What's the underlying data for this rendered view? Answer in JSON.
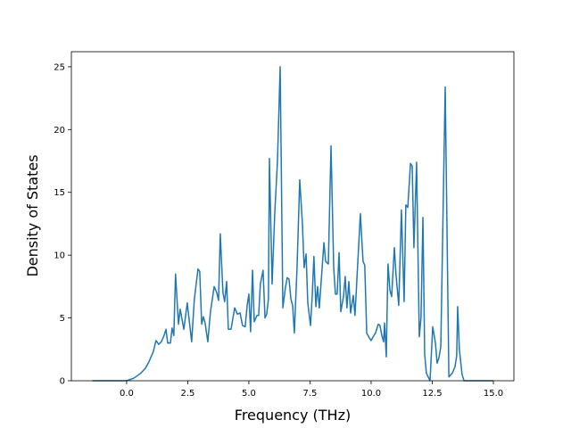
{
  "chart_data": {
    "type": "line",
    "xlabel": "Frequency (THz)",
    "ylabel": "Density of States",
    "x": [
      -1.4,
      0,
      0.29,
      0.58,
      0.77,
      0.91,
      1.02,
      1.09,
      1.2,
      1.31,
      1.42,
      1.53,
      1.61,
      1.68,
      1.79,
      1.86,
      1.93,
      2.0,
      2.12,
      2.19,
      2.34,
      2.48,
      2.59,
      2.66,
      2.77,
      2.92,
      2.99,
      3.07,
      3.14,
      3.21,
      3.32,
      3.43,
      3.58,
      3.69,
      3.76,
      3.83,
      3.94,
      4.01,
      4.09,
      4.16,
      4.27,
      4.42,
      4.53,
      4.64,
      4.74,
      4.85,
      4.93,
      5.0,
      5.07,
      5.15,
      5.22,
      5.33,
      5.4,
      5.47,
      5.58,
      5.66,
      5.73,
      5.8,
      5.84,
      5.95,
      6.06,
      6.17,
      6.28,
      6.39,
      6.5,
      6.57,
      6.64,
      6.72,
      6.79,
      6.86,
      6.97,
      7.08,
      7.19,
      7.26,
      7.34,
      7.41,
      7.52,
      7.59,
      7.66,
      7.74,
      7.81,
      7.88,
      8.07,
      8.14,
      8.25,
      8.36,
      8.47,
      8.54,
      8.61,
      8.69,
      8.76,
      8.87,
      8.94,
      9.01,
      9.09,
      9.16,
      9.27,
      9.34,
      9.56,
      9.67,
      9.74,
      9.82,
      9.93,
      10.0,
      10.11,
      10.18,
      10.29,
      10.36,
      10.44,
      10.51,
      10.55,
      10.62,
      10.69,
      10.77,
      10.84,
      10.95,
      11.02,
      11.13,
      11.24,
      11.35,
      11.42,
      11.5,
      11.61,
      11.68,
      11.75,
      11.86,
      11.97,
      12.04,
      12.12,
      12.19,
      12.26,
      12.41,
      12.52,
      12.63,
      12.7,
      12.77,
      12.85,
      13.03,
      13.18,
      13.32,
      13.43,
      13.5,
      13.54,
      13.61,
      13.72,
      13.8,
      15.0
    ],
    "series": [
      {
        "color": "#1f77b4",
        "values": [
          0,
          0,
          0.2,
          0.6,
          1.0,
          1.5,
          2.0,
          2.3,
          3.2,
          2.9,
          3.1,
          3.6,
          4.1,
          3.0,
          3.0,
          4.2,
          3.6,
          8.5,
          4.5,
          5.7,
          4.1,
          6.2,
          4.3,
          3.1,
          6.5,
          8.9,
          8.7,
          4.5,
          5.1,
          4.6,
          3.1,
          5.5,
          7.5,
          7.0,
          6.4,
          11.7,
          7.0,
          6.3,
          7.9,
          4.1,
          4.1,
          5.8,
          5.3,
          5.4,
          4.4,
          4.3,
          6.0,
          6.9,
          3.9,
          8.8,
          4.7,
          5.2,
          5.2,
          7.7,
          8.8,
          5.0,
          5.3,
          6.5,
          17.7,
          7.7,
          13.4,
          17.5,
          25.0,
          5.8,
          7.5,
          8.2,
          8.1,
          6.5,
          6.0,
          3.8,
          9.0,
          16.0,
          12.5,
          9.0,
          10.1,
          6.2,
          4.4,
          6.7,
          9.9,
          5.9,
          7.5,
          5.8,
          11.0,
          9.5,
          9.3,
          18.7,
          9.0,
          6.9,
          6.9,
          10.2,
          5.5,
          6.7,
          8.3,
          5.8,
          7.9,
          5.4,
          6.8,
          5.2,
          13.3,
          9.5,
          9.2,
          3.8,
          3.4,
          3.2,
          3.6,
          3.8,
          4.5,
          4.4,
          3.6,
          3.1,
          4.6,
          1.9,
          9.3,
          7.2,
          6.7,
          10.6,
          8.4,
          6.0,
          13.6,
          6.3,
          14.0,
          13.8,
          17.3,
          17.1,
          10.6,
          17.4,
          3.5,
          5.0,
          13.0,
          2.1,
          0.6,
          0.0,
          4.3,
          3.0,
          1.4,
          1.8,
          2.7,
          23.4,
          0.3,
          0.6,
          1.1,
          2.0,
          5.9,
          2.5,
          0.5,
          0,
          0
        ]
      }
    ],
    "xlim": [
      -2.26,
      15.84
    ],
    "ylim": [
      0,
      26.2
    ],
    "xticks": [
      {
        "value": 0,
        "label": "0.0"
      },
      {
        "value": 2.5,
        "label": "2.5"
      },
      {
        "value": 5,
        "label": "5.0"
      },
      {
        "value": 7.5,
        "label": "7.5"
      },
      {
        "value": 10,
        "label": "10.0"
      },
      {
        "value": 12.5,
        "label": "12.5"
      },
      {
        "value": 15,
        "label": "15.0"
      }
    ],
    "yticks": [
      0,
      5,
      10,
      15,
      20,
      25
    ]
  }
}
